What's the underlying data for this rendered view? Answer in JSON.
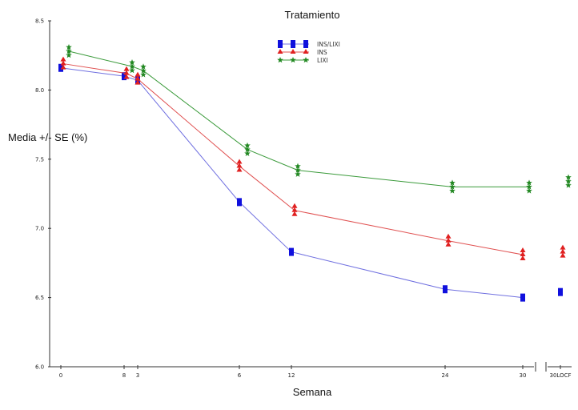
{
  "chart_data": {
    "type": "line",
    "title": "Tratamiento",
    "xlabel": "Semana",
    "ylabel": "Media +/- SE (%)",
    "ylim": [
      6.0,
      8.5
    ],
    "yticks": [
      "6.0",
      "6.5",
      "7.0",
      "7.5",
      "8.0",
      "8.5"
    ],
    "xticks": [
      "0",
      "8",
      "3",
      "6",
      "12",
      "24",
      "30",
      "30LOCF"
    ],
    "legend_position": "top-center",
    "grid": false,
    "series": [
      {
        "name": "INS/LIXI",
        "color": "#1010dd",
        "marker": "square",
        "line_color": "#7070e0",
        "values": [
          8.16,
          8.1,
          8.07,
          7.19,
          6.83,
          6.56,
          6.5
        ],
        "locf": 6.54
      },
      {
        "name": "INS",
        "color": "#e02020",
        "marker": "triangle",
        "line_color": "#e05050",
        "values": [
          8.19,
          8.12,
          8.08,
          7.45,
          7.13,
          6.91,
          6.81
        ],
        "locf": 6.83
      },
      {
        "name": "LIXI",
        "color": "#228822",
        "marker": "star",
        "line_color": "#3a9a3a",
        "values": [
          8.28,
          8.17,
          8.14,
          7.57,
          7.42,
          7.3,
          7.3
        ],
        "locf": 7.34
      }
    ]
  }
}
